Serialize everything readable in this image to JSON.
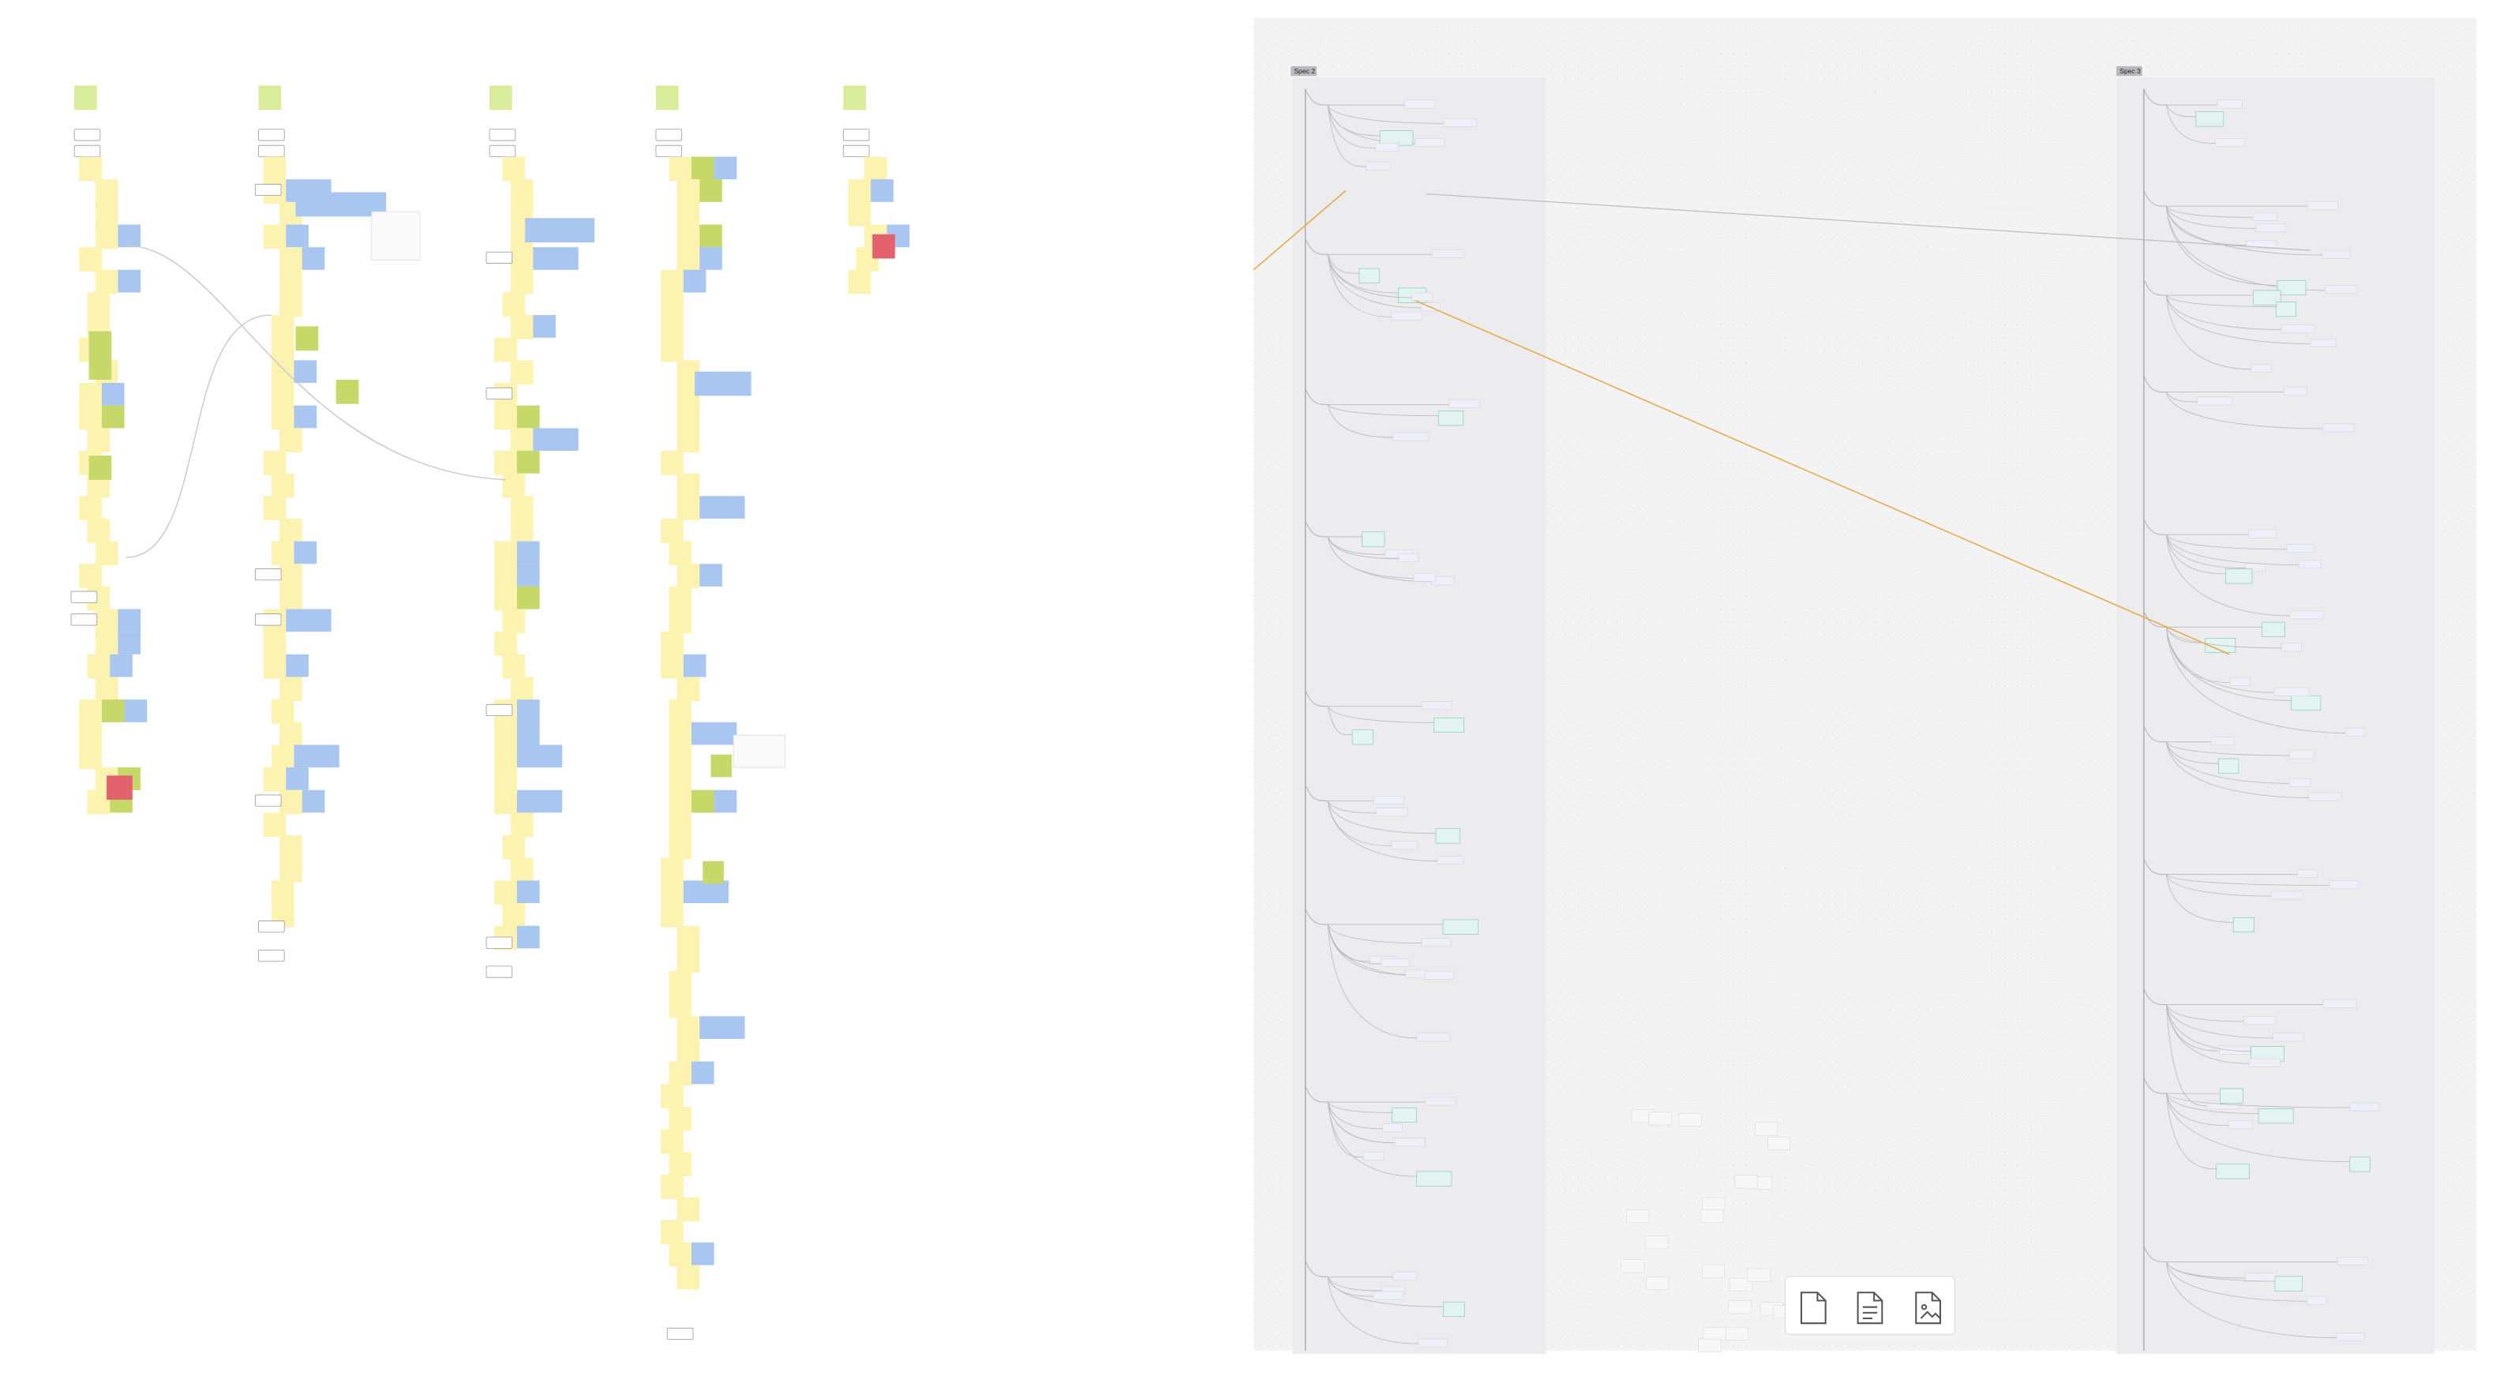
{
  "frames": [
    {
      "label": "Spec 2"
    },
    {
      "label": "Spec 3"
    }
  ]
}
